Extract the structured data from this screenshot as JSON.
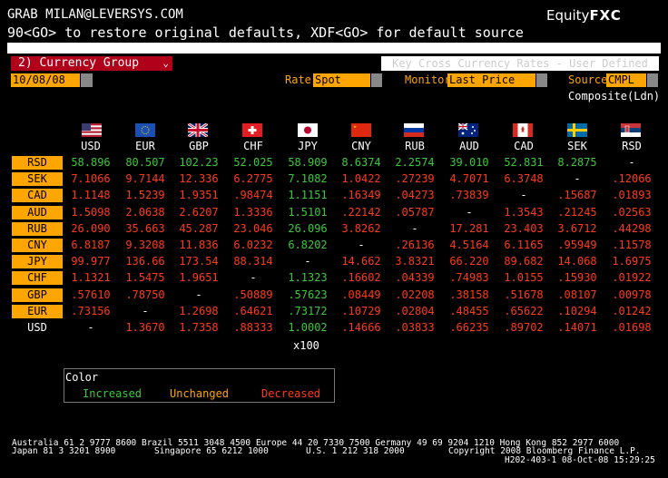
{
  "header": {
    "user_line": "GRAB MILAN@LEVERSYS.COM",
    "brand_prefix": "Equity",
    "brand_suffix": "FXC",
    "instruction": "90<GO> to restore original defaults, XDF<GO> for default source"
  },
  "controls": {
    "menu_label": "2) Currency Group",
    "menu_caret": "⌄",
    "key_cross_label": "Key Cross Currency Rates - User Defined",
    "date_value": "10/08/08",
    "rate_label": "Rate",
    "rate_value": "Spot",
    "monitor_label": "Monitor",
    "monitor_value": "Last Price",
    "source_label": "Source",
    "source_value": "CMPL",
    "composite_label": "Composite(Ldn)"
  },
  "colors": {
    "increased": "#3bc83b",
    "unchanged": "#ffa500",
    "decreased": "#ff3a1a",
    "field_bg": "#ffa500"
  },
  "columns": [
    "USD",
    "EUR",
    "GBP",
    "CHF",
    "JPY",
    "CNY",
    "RUB",
    "AUD",
    "CAD",
    "SEK",
    "RSD"
  ],
  "rows": [
    {
      "label": "RSD",
      "cells": [
        [
          "58.896",
          "i"
        ],
        [
          "80.507",
          "i"
        ],
        [
          "102.23",
          "i"
        ],
        [
          "52.025",
          "i"
        ],
        [
          "58.909",
          "i"
        ],
        [
          "8.6374",
          "i"
        ],
        [
          "2.2574",
          "i"
        ],
        [
          "39.010",
          "i"
        ],
        [
          "52.831",
          "i"
        ],
        [
          "8.2875",
          "i"
        ],
        [
          "-",
          "n"
        ]
      ]
    },
    {
      "label": "SEK",
      "cells": [
        [
          "7.1066",
          "d"
        ],
        [
          "9.7144",
          "d"
        ],
        [
          "12.336",
          "d"
        ],
        [
          "6.2775",
          "d"
        ],
        [
          "7.1082",
          "i"
        ],
        [
          "1.0422",
          "d"
        ],
        [
          ".27239",
          "d"
        ],
        [
          "4.7071",
          "d"
        ],
        [
          "6.3748",
          "d"
        ],
        [
          "-",
          "n"
        ],
        [
          ".12066",
          "d"
        ]
      ]
    },
    {
      "label": "CAD",
      "cells": [
        [
          "1.1148",
          "d"
        ],
        [
          "1.5239",
          "d"
        ],
        [
          "1.9351",
          "d"
        ],
        [
          ".98474",
          "d"
        ],
        [
          "1.1151",
          "i"
        ],
        [
          ".16349",
          "d"
        ],
        [
          ".04273",
          "d"
        ],
        [
          ".73839",
          "d"
        ],
        [
          "-",
          "n"
        ],
        [
          ".15687",
          "d"
        ],
        [
          ".01893",
          "d"
        ]
      ]
    },
    {
      "label": "AUD",
      "cells": [
        [
          "1.5098",
          "d"
        ],
        [
          "2.0638",
          "d"
        ],
        [
          "2.6207",
          "d"
        ],
        [
          "1.3336",
          "d"
        ],
        [
          "1.5101",
          "i"
        ],
        [
          ".22142",
          "d"
        ],
        [
          ".05787",
          "d"
        ],
        [
          "-",
          "n"
        ],
        [
          "1.3543",
          "d"
        ],
        [
          ".21245",
          "d"
        ],
        [
          ".02563",
          "d"
        ]
      ]
    },
    {
      "label": "RUB",
      "cells": [
        [
          "26.090",
          "d"
        ],
        [
          "35.663",
          "d"
        ],
        [
          "45.287",
          "d"
        ],
        [
          "23.046",
          "d"
        ],
        [
          "26.096",
          "i"
        ],
        [
          "3.8262",
          "d"
        ],
        [
          "-",
          "n"
        ],
        [
          "17.281",
          "d"
        ],
        [
          "23.403",
          "d"
        ],
        [
          "3.6712",
          "d"
        ],
        [
          ".44298",
          "d"
        ]
      ]
    },
    {
      "label": "CNY",
      "cells": [
        [
          "6.8187",
          "d"
        ],
        [
          "9.3208",
          "d"
        ],
        [
          "11.836",
          "d"
        ],
        [
          "6.0232",
          "d"
        ],
        [
          "6.8202",
          "i"
        ],
        [
          "-",
          "n"
        ],
        [
          ".26136",
          "d"
        ],
        [
          "4.5164",
          "d"
        ],
        [
          "6.1165",
          "d"
        ],
        [
          ".95949",
          "d"
        ],
        [
          ".11578",
          "d"
        ]
      ]
    },
    {
      "label": "JPY",
      "cells": [
        [
          "99.977",
          "d"
        ],
        [
          "136.66",
          "d"
        ],
        [
          "173.54",
          "d"
        ],
        [
          "88.314",
          "d"
        ],
        [
          "-",
          "n"
        ],
        [
          "14.662",
          "d"
        ],
        [
          "3.8321",
          "d"
        ],
        [
          "66.220",
          "d"
        ],
        [
          "89.682",
          "d"
        ],
        [
          "14.068",
          "d"
        ],
        [
          "1.6975",
          "d"
        ]
      ]
    },
    {
      "label": "CHF",
      "cells": [
        [
          "1.1321",
          "d"
        ],
        [
          "1.5475",
          "d"
        ],
        [
          "1.9651",
          "d"
        ],
        [
          "-",
          "n"
        ],
        [
          "1.1323",
          "i"
        ],
        [
          ".16602",
          "d"
        ],
        [
          ".04339",
          "d"
        ],
        [
          ".74983",
          "d"
        ],
        [
          "1.0155",
          "d"
        ],
        [
          ".15930",
          "d"
        ],
        [
          ".01922",
          "d"
        ]
      ]
    },
    {
      "label": "GBP",
      "cells": [
        [
          ".57610",
          "d"
        ],
        [
          ".78750",
          "d"
        ],
        [
          "-",
          "n"
        ],
        [
          ".50889",
          "d"
        ],
        [
          ".57623",
          "i"
        ],
        [
          ".08449",
          "d"
        ],
        [
          ".02208",
          "d"
        ],
        [
          ".38158",
          "d"
        ],
        [
          ".51678",
          "d"
        ],
        [
          ".08107",
          "d"
        ],
        [
          ".00978",
          "d"
        ]
      ]
    },
    {
      "label": "EUR",
      "cells": [
        [
          ".73156",
          "d"
        ],
        [
          "-",
          "n"
        ],
        [
          "1.2698",
          "d"
        ],
        [
          ".64621",
          "d"
        ],
        [
          ".73172",
          "i"
        ],
        [
          ".10729",
          "d"
        ],
        [
          ".02804",
          "d"
        ],
        [
          ".48455",
          "d"
        ],
        [
          ".65622",
          "d"
        ],
        [
          ".10294",
          "d"
        ],
        [
          ".01242",
          "d"
        ]
      ]
    },
    {
      "label": "USD",
      "cells": [
        [
          "-",
          "n"
        ],
        [
          "1.3670",
          "d"
        ],
        [
          "1.7358",
          "d"
        ],
        [
          ".88333",
          "d"
        ],
        [
          "1.0002",
          "i"
        ],
        [
          ".14666",
          "d"
        ],
        [
          ".03833",
          "d"
        ],
        [
          ".66235",
          "d"
        ],
        [
          ".89702",
          "d"
        ],
        [
          ".14071",
          "d"
        ],
        [
          ".01698",
          "d"
        ]
      ]
    }
  ],
  "jpy_note": "x100",
  "legend": {
    "title": "Color",
    "increased": "Increased",
    "unchanged": "Unchanged",
    "decreased": "Decreased"
  },
  "footer": {
    "line1": "Australia 61 2 9777 8600 Brazil 5511 3048 4500 Europe 44 20 7330 7500 Germany 49 69 9204 1210 Hong Kong 852 2977 6000",
    "line2_left": "Japan 81 3 3201 8900",
    "line2_mid1": "Singapore 65 6212 1000",
    "line2_mid2": "U.S. 1 212 318 2000",
    "line2_right": "Copyright 2008 Bloomberg Finance L.P.",
    "line3_right": "H202-403-1 08-Oct-08 15:29:25"
  }
}
